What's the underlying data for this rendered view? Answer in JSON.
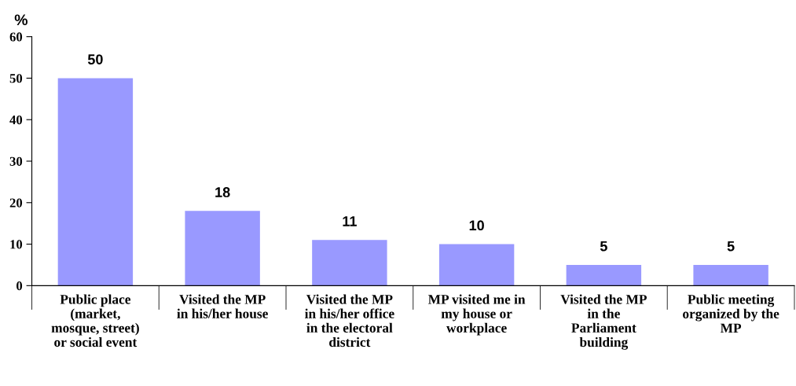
{
  "chart_data": {
    "type": "bar",
    "ylabel": "%",
    "categories": [
      "Public place\n(market,\nmosque, street)\nor social event",
      "Visited the MP\nin his/her house",
      "Visited the MP\nin his/her office\nin the electoral\ndistrict",
      "MP visited me in\nmy house or\nworkplace",
      "Visited the MP\nin the\nParliament\nbuilding",
      "Public meeting\norganized by the\nMP"
    ],
    "values": [
      50,
      18,
      11,
      10,
      5,
      5
    ],
    "color": "#9999ff",
    "data_labels": true,
    "ylim": [
      0,
      60
    ],
    "yticks": [
      0,
      10,
      20,
      30,
      40,
      50,
      60
    ],
    "grid": false,
    "legend": false
  }
}
